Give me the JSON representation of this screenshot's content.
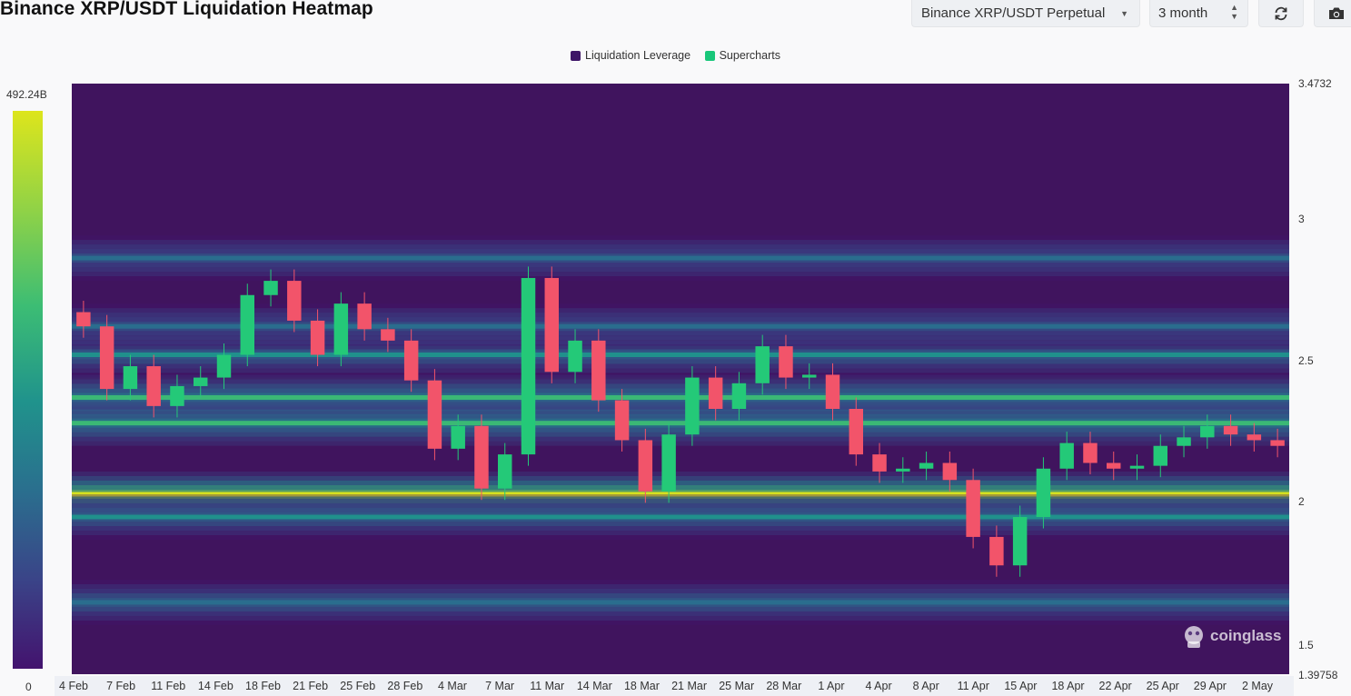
{
  "header": {
    "title": "Binance XRP/USDT Liquidation Heatmap",
    "market_select": "Binance XRP/USDT Perpetual",
    "range_select": "3 month",
    "refresh_icon": "refresh-icon",
    "camera_icon": "camera-icon"
  },
  "legend": [
    {
      "label": "Liquidation Leverage",
      "color": "#3d1467"
    },
    {
      "label": "Supercharts",
      "color": "#19c77a"
    }
  ],
  "color_scale": {
    "max_label": "492.24B",
    "min_label": "0"
  },
  "watermark": "coinglass",
  "chart_data": {
    "type": "heatmap",
    "title": "Binance XRP/USDT Liquidation Heatmap",
    "ylim": [
      1.39758,
      3.4732
    ],
    "y_ticks": [
      "3.4732",
      "3",
      "2.5",
      "2",
      "1.5",
      "1.39758"
    ],
    "x_ticks": [
      "4 Feb",
      "7 Feb",
      "11 Feb",
      "14 Feb",
      "18 Feb",
      "21 Feb",
      "25 Feb",
      "28 Feb",
      "4 Mar",
      "7 Mar",
      "11 Mar",
      "14 Mar",
      "18 Mar",
      "21 Mar",
      "25 Mar",
      "28 Mar",
      "1 Apr",
      "4 Apr",
      "8 Apr",
      "11 Apr",
      "15 Apr",
      "18 Apr",
      "22 Apr",
      "25 Apr",
      "29 Apr",
      "2 May"
    ],
    "color_range": [
      "0",
      "492.24B"
    ],
    "series": [
      {
        "name": "Supercharts",
        "type": "candlestick",
        "close": [
          2.62,
          2.4,
          2.48,
          2.34,
          2.41,
          2.44,
          2.52,
          2.73,
          2.78,
          2.64,
          2.52,
          2.7,
          2.61,
          2.57,
          2.43,
          2.19,
          2.27,
          2.05,
          2.17,
          2.79,
          2.46,
          2.57,
          2.36,
          2.22,
          2.04,
          2.24,
          2.44,
          2.33,
          2.42,
          2.55,
          2.44,
          2.45,
          2.33,
          2.17,
          2.11,
          2.12,
          2.14,
          2.08,
          1.88,
          1.78,
          1.95,
          2.12,
          2.21,
          2.14,
          2.12,
          2.13,
          2.2,
          2.23,
          2.27,
          2.24,
          2.22,
          2.2
        ]
      },
      {
        "name": "Liquidation Leverage",
        "type": "heatmap_bands",
        "levels": [
          {
            "price": 2.03,
            "intensity": 1.0
          },
          {
            "price": 2.37,
            "intensity": 0.62
          },
          {
            "price": 2.28,
            "intensity": 0.6
          },
          {
            "price": 2.52,
            "intensity": 0.45
          },
          {
            "price": 2.62,
            "intensity": 0.35
          },
          {
            "price": 1.65,
            "intensity": 0.4
          },
          {
            "price": 1.95,
            "intensity": 0.45
          },
          {
            "price": 2.86,
            "intensity": 0.3
          }
        ]
      }
    ]
  }
}
